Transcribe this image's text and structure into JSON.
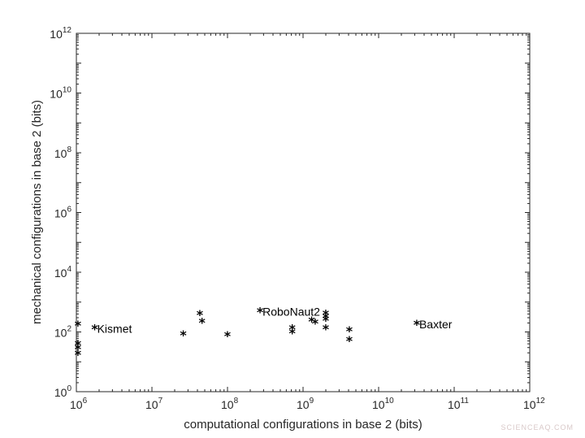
{
  "chart_data": {
    "type": "scatter",
    "xlabel": "computational configurations in base 2 (bits)",
    "ylabel": "mechanical configurations in base 2 (bits)",
    "xscale": "log",
    "yscale": "log",
    "xlim": [
      1000000,
      1000000000000
    ],
    "ylim": [
      1,
      1000000000000
    ],
    "x_ticks": [
      {
        "base": "10",
        "exp": "6"
      },
      {
        "base": "10",
        "exp": "7"
      },
      {
        "base": "10",
        "exp": "8"
      },
      {
        "base": "10",
        "exp": "9"
      },
      {
        "base": "10",
        "exp": "10"
      },
      {
        "base": "10",
        "exp": "11"
      },
      {
        "base": "10",
        "exp": "12"
      }
    ],
    "y_ticks": [
      {
        "base": "10",
        "exp": "0"
      },
      {
        "base": "10",
        "exp": "2"
      },
      {
        "base": "10",
        "exp": "4"
      },
      {
        "base": "10",
        "exp": "6"
      },
      {
        "base": "10",
        "exp": "8"
      },
      {
        "base": "10",
        "exp": "10"
      },
      {
        "base": "10",
        "exp": "12"
      }
    ],
    "marker": "*",
    "grid": false,
    "points": [
      {
        "x": 1050000,
        "y": 170
      },
      {
        "x": 1050000,
        "y": 38
      },
      {
        "x": 1050000,
        "y": 28
      },
      {
        "x": 1050000,
        "y": 18
      },
      {
        "x": 1750000,
        "y": 130,
        "label": "Kismet"
      },
      {
        "x": 26000000,
        "y": 80
      },
      {
        "x": 43000000,
        "y": 380
      },
      {
        "x": 46000000,
        "y": 210
      },
      {
        "x": 100000000,
        "y": 75
      },
      {
        "x": 270000000,
        "y": 480,
        "label": "RoboNaut2"
      },
      {
        "x": 720000000,
        "y": 130
      },
      {
        "x": 720000000,
        "y": 95
      },
      {
        "x": 1300000000,
        "y": 230
      },
      {
        "x": 1450000000,
        "y": 200
      },
      {
        "x": 2000000000,
        "y": 400
      },
      {
        "x": 2000000000,
        "y": 310
      },
      {
        "x": 2000000000,
        "y": 250
      },
      {
        "x": 2000000000,
        "y": 130
      },
      {
        "x": 4100000000,
        "y": 110
      },
      {
        "x": 4100000000,
        "y": 52
      },
      {
        "x": 32000000000,
        "y": 180,
        "label": "Baxter"
      }
    ]
  },
  "watermark": "SCIENCEAQ.COM"
}
